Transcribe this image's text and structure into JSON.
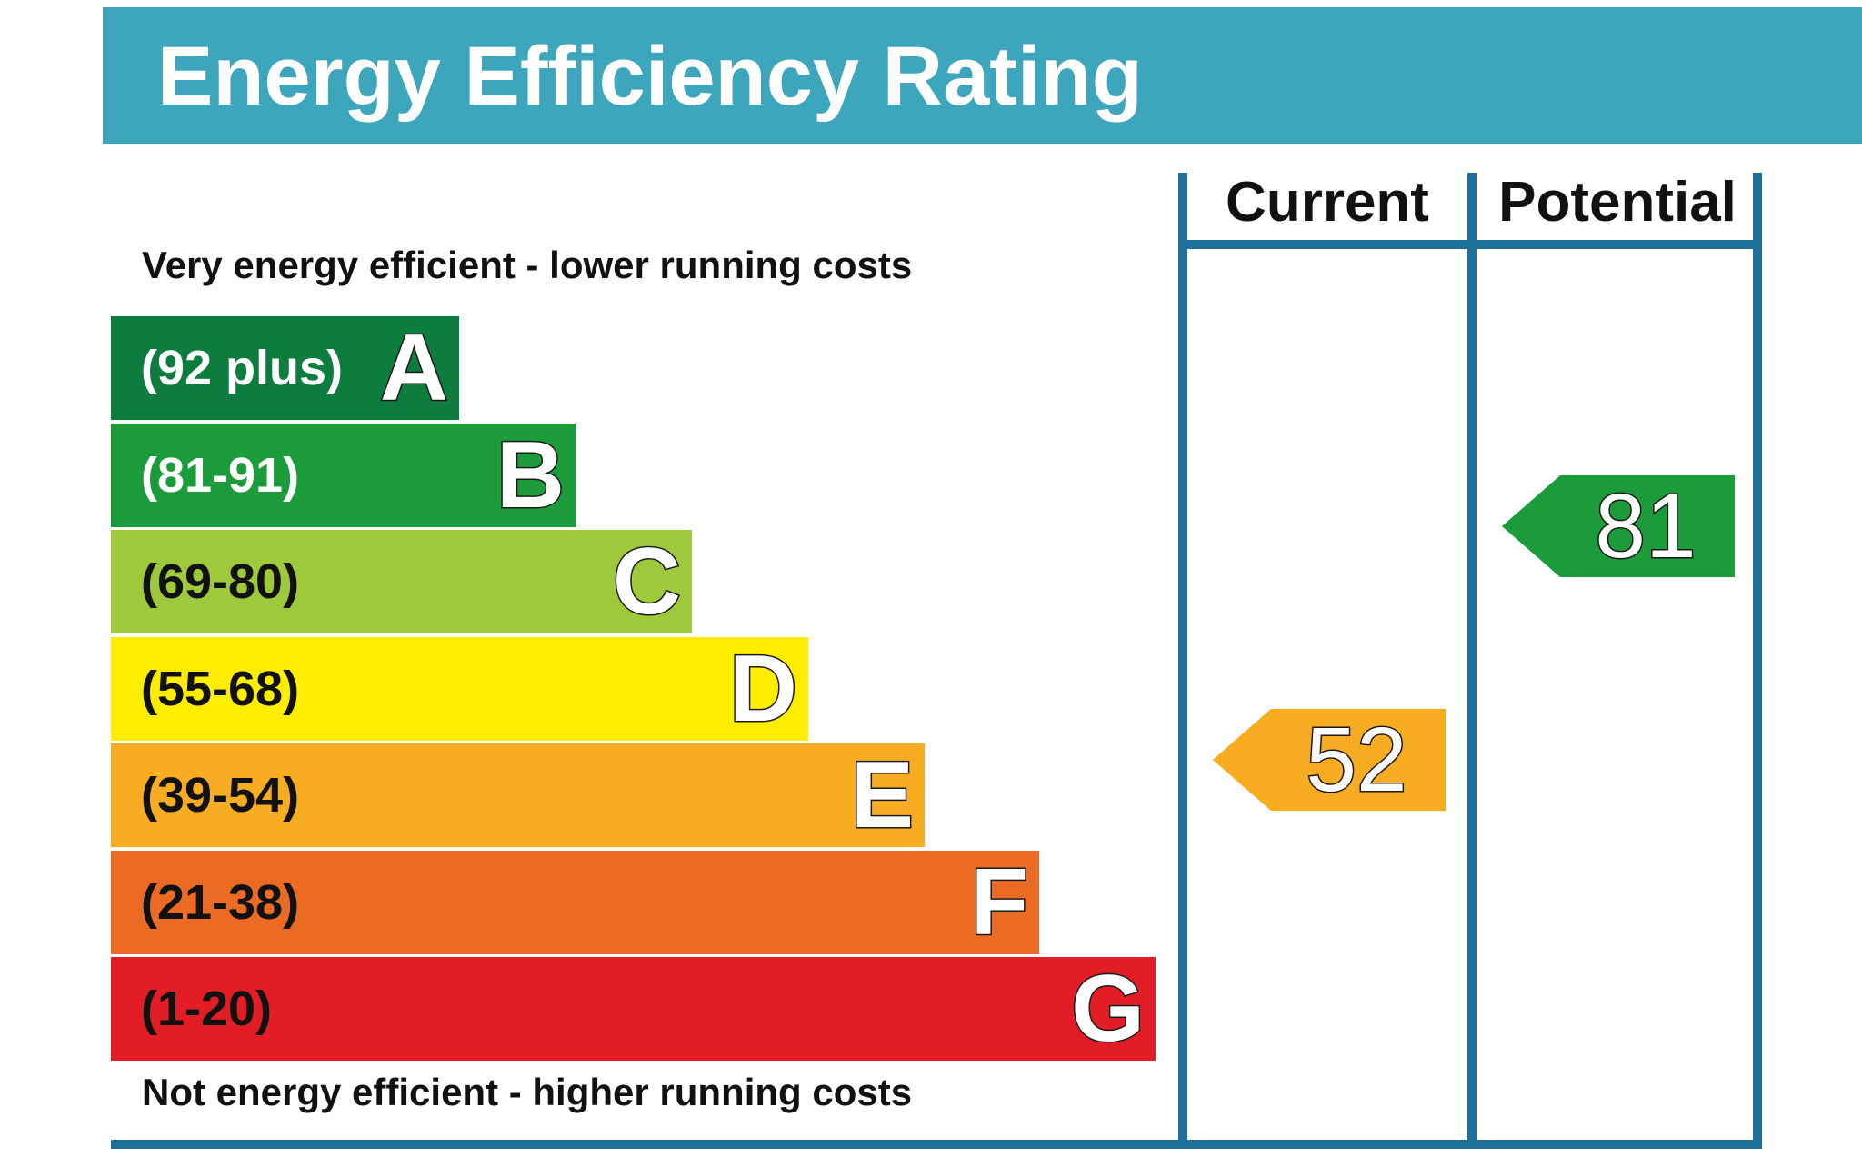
{
  "title": "Energy Efficiency Rating",
  "columns": {
    "current": "Current",
    "potential": "Potential"
  },
  "notes": {
    "top": "Very energy efficient - lower running costs",
    "bottom": "Not energy efficient - higher running costs"
  },
  "chart_data": {
    "type": "bar",
    "title": "Energy Efficiency Rating",
    "bands": [
      {
        "letter": "A",
        "range": "(92 plus)",
        "color": "#0c7d3f",
        "text_color": "#ffffff"
      },
      {
        "letter": "B",
        "range": "(81-91)",
        "color": "#1c9b3b",
        "text_color": "#ffffff"
      },
      {
        "letter": "C",
        "range": "(69-80)",
        "color": "#9dc93b",
        "text_color": "#111111"
      },
      {
        "letter": "D",
        "range": "(55-68)",
        "color": "#ffed00",
        "text_color": "#111111"
      },
      {
        "letter": "E",
        "range": "(39-54)",
        "color": "#f7ac22",
        "text_color": "#111111"
      },
      {
        "letter": "F",
        "range": "(21-38)",
        "color": "#ec6b24",
        "text_color": "#111111"
      },
      {
        "letter": "G",
        "range": "(1-20)",
        "color": "#e21d25",
        "text_color": "#111111"
      }
    ],
    "current": {
      "value": "52",
      "band": "E",
      "color": "#f7ac22"
    },
    "potential": {
      "value": "81",
      "band": "B",
      "color": "#1c9b3b"
    }
  }
}
